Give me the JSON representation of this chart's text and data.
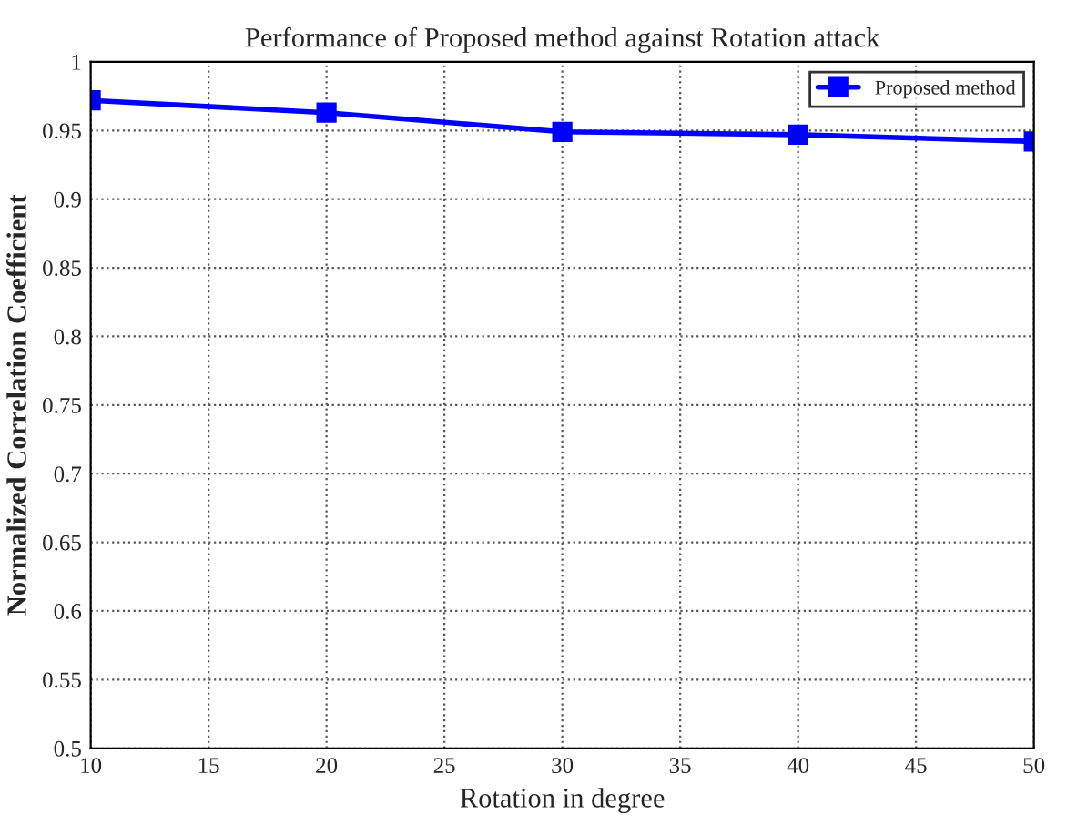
{
  "chart_data": {
    "type": "line",
    "title": "Performance of Proposed method against Rotation attack",
    "xlabel": "Rotation in degree",
    "ylabel": "Normalized Correlation Coefficient",
    "x": [
      10,
      20,
      30,
      40,
      50
    ],
    "series": [
      {
        "name": "Proposed method",
        "color": "#0000ff",
        "values": [
          0.972,
          0.963,
          0.949,
          0.947,
          0.942
        ]
      }
    ],
    "xlim": [
      10,
      50
    ],
    "xticks": [
      10,
      15,
      20,
      25,
      30,
      35,
      40,
      45,
      50
    ],
    "ylim": [
      0.5,
      1
    ],
    "yticks": [
      0.5,
      0.55,
      0.6,
      0.65,
      0.7,
      0.75,
      0.8,
      0.85,
      0.9,
      0.95,
      1
    ],
    "grid": true,
    "legend": "top right",
    "marker": "square",
    "line_style": "solid"
  }
}
